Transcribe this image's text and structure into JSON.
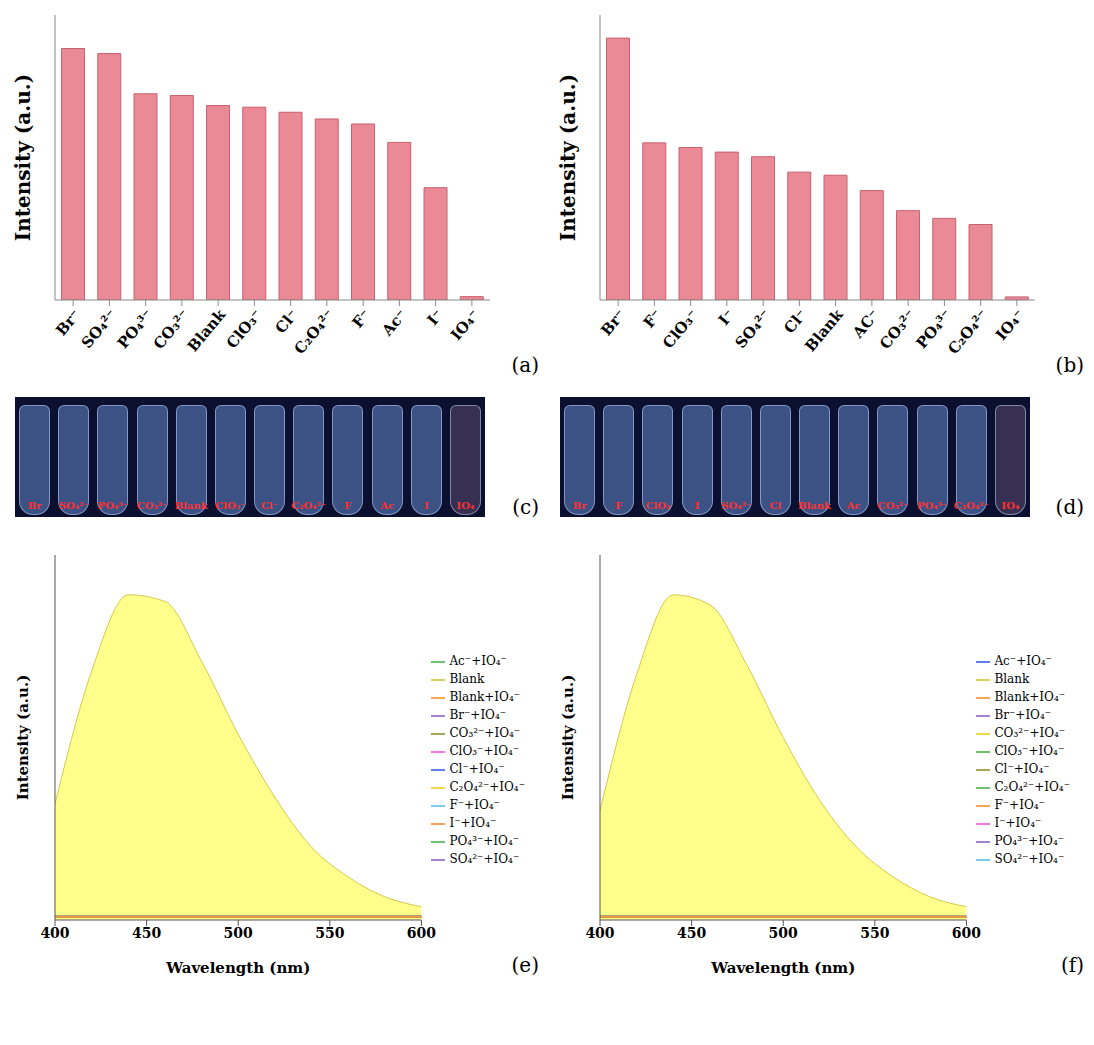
{
  "chart_data": [
    {
      "panel": "(a)",
      "type": "bar",
      "y_label": "Intensity (a.u.)",
      "color": "#e98a96",
      "tick_labels": "x",
      "ylim": [
        0,
        170
      ],
      "categories": [
        "Br⁻",
        "SO₄²⁻",
        "PO₄³⁻",
        "CO₃²⁻",
        "Blank",
        "ClO₃⁻",
        "Cl⁻",
        "C₂O₄²⁻",
        "F⁻",
        "Ac⁻",
        "I⁻",
        "IO₄⁻"
      ],
      "values": [
        150,
        147,
        123,
        122,
        116,
        115,
        112,
        108,
        105,
        94,
        67,
        2
      ]
    },
    {
      "panel": "(b)",
      "type": "bar",
      "y_label": "Intensity (a.u.)",
      "color": "#e98a96",
      "tick_labels": "x",
      "ylim": [
        0,
        185
      ],
      "categories": [
        "Br⁻",
        "F⁻",
        "ClO₃⁻",
        "I⁻",
        "SO₄²⁻",
        "Cl⁻",
        "Blank",
        "AC⁻",
        "CO₃²⁻",
        "PO₄³⁻",
        "C₂O₄²⁻",
        "IO₄⁻"
      ],
      "values": [
        170,
        102,
        99,
        96,
        93,
        83,
        81,
        71,
        58,
        53,
        49,
        2
      ]
    },
    {
      "panel": "(e)",
      "type": "line",
      "x_label": "Wavelength (nm)",
      "y_label": "Intensity (a.u.)",
      "tick_labels": "x",
      "legend": "right",
      "xlim": [
        400,
        600
      ],
      "xticks": [
        400,
        450,
        500,
        550,
        600
      ],
      "ylim": [
        0,
        110
      ],
      "x": [
        400,
        420,
        440,
        460,
        480,
        500,
        520,
        540,
        560,
        580,
        600
      ],
      "series": [
        {
          "name": "Blank",
          "type": "area",
          "color": "#ffff80",
          "values": [
            35,
            75,
            98,
            96,
            78,
            56,
            37,
            22,
            13,
            7,
            4
          ]
        },
        {
          "name": "SO₄²⁻+IO₄⁻",
          "color": "#9b6fcf",
          "values": [
            1,
            1,
            1,
            1,
            1,
            1,
            1,
            1,
            1,
            1,
            1
          ]
        },
        {
          "name": "PO₄³⁻+IO₄⁻",
          "color": "#5cb85c",
          "values": [
            1,
            1,
            1,
            1,
            1,
            1,
            1,
            1,
            1,
            1,
            1
          ]
        },
        {
          "name": "I⁻+IO₄⁻",
          "color": "#f59a3c",
          "values": [
            1,
            1,
            1,
            1,
            1,
            1,
            1,
            1,
            1,
            1,
            1
          ]
        },
        {
          "name": "F⁻+IO₄⁻",
          "color": "#6cc5e8",
          "values": [
            1,
            1,
            1,
            1,
            1,
            1,
            1,
            1,
            1,
            1,
            1
          ]
        },
        {
          "name": "CO₃²⁻+IO₄⁻",
          "color": "#9c9c3a",
          "values": [
            1,
            1,
            1,
            1,
            1,
            1,
            1,
            1,
            1,
            1,
            1
          ]
        },
        {
          "name": "ClO₃⁻+IO₄⁻",
          "color": "#f06ad0",
          "values": [
            1,
            1,
            1,
            1,
            1,
            1,
            1,
            1,
            1,
            1,
            1
          ]
        },
        {
          "name": "Cl⁻+IO₄⁻",
          "color": "#4a6fe8",
          "values": [
            1,
            1,
            1,
            1,
            1,
            1,
            1,
            1,
            1,
            1,
            1
          ]
        },
        {
          "name": "C₂O₄²⁻+IO₄⁻",
          "color": "#f2d430",
          "values": [
            1,
            1,
            1,
            1,
            1,
            1,
            1,
            1,
            1,
            1,
            1
          ]
        },
        {
          "name": "Br⁻+IO₄⁻",
          "color": "#9b6fcf",
          "values": [
            1,
            1,
            1,
            1,
            1,
            1,
            1,
            1,
            1,
            1,
            1
          ]
        },
        {
          "name": "Ac⁻+IO₄⁻",
          "color": "#5cb85c",
          "values": [
            1,
            1,
            1,
            1,
            1,
            1,
            1,
            1,
            1,
            1,
            1
          ]
        },
        {
          "name": "Blank+IO₄⁻",
          "color": "#f59a3c",
          "values": [
            1,
            1,
            1,
            1,
            1,
            1,
            1,
            1,
            1,
            1,
            1
          ]
        }
      ]
    },
    {
      "panel": "(f)",
      "type": "line",
      "x_label": "Wavelength (nm)",
      "y_label": "Intensity (a.u.)",
      "tick_labels": "x",
      "legend": "right",
      "xlim": [
        400,
        600
      ],
      "xticks": [
        400,
        450,
        500,
        550,
        600
      ],
      "ylim": [
        0,
        110
      ],
      "x": [
        400,
        420,
        440,
        460,
        480,
        500,
        520,
        540,
        560,
        580,
        600
      ],
      "series": [
        {
          "name": "Blank",
          "type": "area",
          "color": "#ffff80",
          "values": [
            33,
            74,
            98,
            95,
            77,
            55,
            36,
            22,
            13,
            7,
            4
          ]
        },
        {
          "name": "Br⁻+IO₄⁻",
          "color": "#9b6fcf",
          "values": [
            1,
            1,
            1,
            1,
            1,
            1,
            1,
            1,
            1,
            1,
            1
          ]
        },
        {
          "name": "ClO₃⁻+IO₄⁻",
          "color": "#5cb85c",
          "values": [
            1,
            1,
            1,
            1,
            1,
            1,
            1,
            1,
            1,
            1,
            1
          ]
        },
        {
          "name": "F⁻+IO₄⁻",
          "color": "#f59a3c",
          "values": [
            1,
            1,
            1,
            1,
            1,
            1,
            1,
            1,
            1,
            1,
            1
          ]
        },
        {
          "name": "SO₄²⁻+IO₄⁻",
          "color": "#6cc5e8",
          "values": [
            1,
            1,
            1,
            1,
            1,
            1,
            1,
            1,
            1,
            1,
            1
          ]
        },
        {
          "name": "Cl⁻+IO₄⁻",
          "color": "#9c9c3a",
          "values": [
            1,
            1,
            1,
            1,
            1,
            1,
            1,
            1,
            1,
            1,
            1
          ]
        },
        {
          "name": "I⁻+IO₄⁻",
          "color": "#f06ad0",
          "values": [
            1,
            1,
            1,
            1,
            1,
            1,
            1,
            1,
            1,
            1,
            1
          ]
        },
        {
          "name": "Ac⁻+IO₄⁻",
          "color": "#4a6fe8",
          "values": [
            1,
            1,
            1,
            1,
            1,
            1,
            1,
            1,
            1,
            1,
            1
          ]
        },
        {
          "name": "CO₃²⁻+IO₄⁻",
          "color": "#f2d430",
          "values": [
            1,
            1,
            1,
            1,
            1,
            1,
            1,
            1,
            1,
            1,
            1
          ]
        },
        {
          "name": "PO₄³⁻+IO₄⁻",
          "color": "#9b6fcf",
          "values": [
            1,
            1,
            1,
            1,
            1,
            1,
            1,
            1,
            1,
            1,
            1
          ]
        },
        {
          "name": "C₂O₄²⁻+IO₄⁻",
          "color": "#5cb85c",
          "values": [
            1,
            1,
            1,
            1,
            1,
            1,
            1,
            1,
            1,
            1,
            1
          ]
        },
        {
          "name": "Blank+IO₄⁻",
          "color": "#f59a3c",
          "values": [
            1,
            1,
            1,
            1,
            1,
            1,
            1,
            1,
            1,
            1,
            1
          ]
        }
      ]
    }
  ],
  "photos": [
    {
      "panel": "(c)",
      "labels": [
        "Br",
        "SO₄²⁻",
        "PO₄³⁻",
        "CO₃²⁻",
        "Blank",
        "ClO₃⁻",
        "Cl⁻",
        "C₂O₄²⁻",
        "F",
        "Ac",
        "I",
        "IO₄"
      ]
    },
    {
      "panel": "(d)",
      "labels": [
        "Br",
        "F",
        "ClO₃",
        "I",
        "SO₄²⁻",
        "Cl",
        "Blank",
        "Ac",
        "CO₃²⁻",
        "PO₄³⁻",
        "C₂O₄²⁻",
        "IO₄"
      ]
    }
  ]
}
